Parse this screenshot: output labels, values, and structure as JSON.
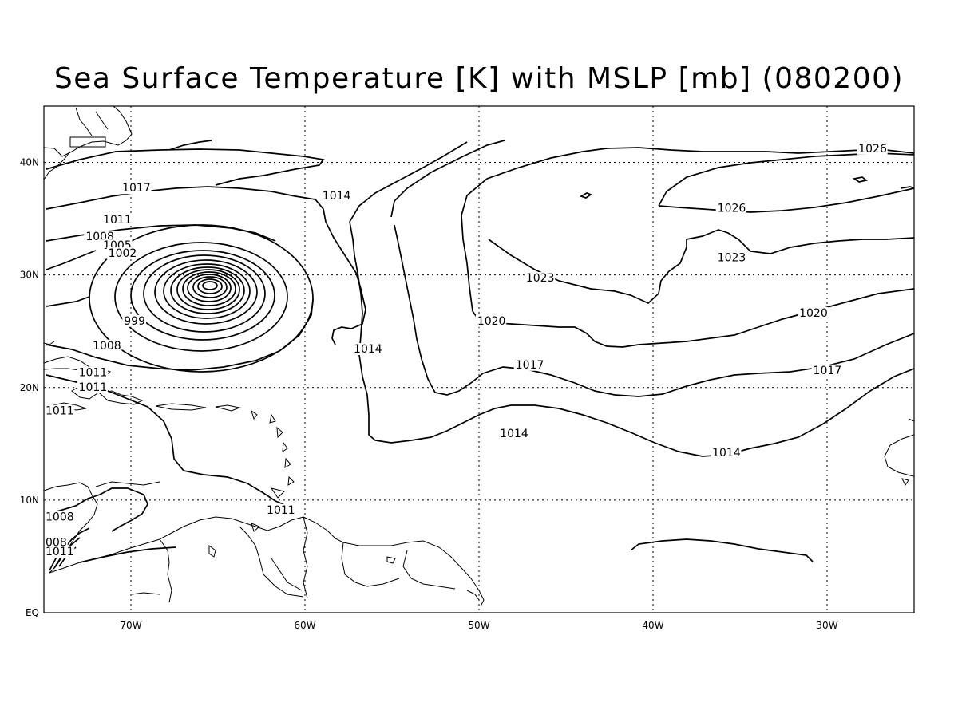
{
  "title": "Sea Surface Temperature [K] with MSLP [mb] (080200)",
  "axes": {
    "lon_ticks": [
      "70W",
      "60W",
      "50W",
      "40W",
      "30W"
    ],
    "lat_ticks": [
      "40N",
      "30N",
      "20N",
      "10N",
      "EQ"
    ],
    "lon_range": [
      -75,
      -25
    ],
    "lat_range": [
      0,
      45
    ],
    "grid": "dotted"
  },
  "contour_labels": [
    {
      "text": "1026",
      "lon": -28.2,
      "lat": 40.9
    },
    {
      "text": "1026",
      "lon": -36.3,
      "lat": 35.6
    },
    {
      "text": "1023",
      "lon": -36.3,
      "lat": 31.2
    },
    {
      "text": "1023",
      "lon": -47.3,
      "lat": 29.4
    },
    {
      "text": "1020",
      "lon": -50.1,
      "lat": 25.6
    },
    {
      "text": "1020",
      "lon": -31.6,
      "lat": 26.3
    },
    {
      "text": "1017",
      "lon": -47.9,
      "lat": 21.7
    },
    {
      "text": "1017",
      "lon": -30.8,
      "lat": 21.2
    },
    {
      "text": "1014",
      "lon": -48.8,
      "lat": 15.6
    },
    {
      "text": "1014",
      "lon": -36.6,
      "lat": 13.9
    },
    {
      "text": "1014",
      "lon": -57.2,
      "lat": 23.1
    },
    {
      "text": "1014",
      "lon": -59.0,
      "lat": 36.7
    },
    {
      "text": "1017",
      "lon": -70.5,
      "lat": 37.4
    },
    {
      "text": "1011",
      "lon": -71.6,
      "lat": 34.6
    },
    {
      "text": "1008",
      "lon": -72.6,
      "lat": 33.1
    },
    {
      "text": "1005",
      "lon": -71.6,
      "lat": 32.3
    },
    {
      "text": "1002",
      "lon": -71.3,
      "lat": 31.6
    },
    {
      "text": "999",
      "lon": -70.4,
      "lat": 25.6
    },
    {
      "text": "1008",
      "lon": -72.2,
      "lat": 23.4
    },
    {
      "text": "1011",
      "lon": -73.0,
      "lat": 21.0
    },
    {
      "text": "1011",
      "lon": -73.0,
      "lat": 19.7
    },
    {
      "text": "1011",
      "lon": -76.7,
      "lat": 17.6
    },
    {
      "text": "1011",
      "lon": -62.2,
      "lat": 8.8
    },
    {
      "text": "1008",
      "lon": -77.9,
      "lat": 8.2
    },
    {
      "text": "008",
      "lon": -79.2,
      "lat": 5.9
    },
    {
      "text": "1011",
      "lon": -75.0,
      "lat": 5.1
    }
  ]
}
